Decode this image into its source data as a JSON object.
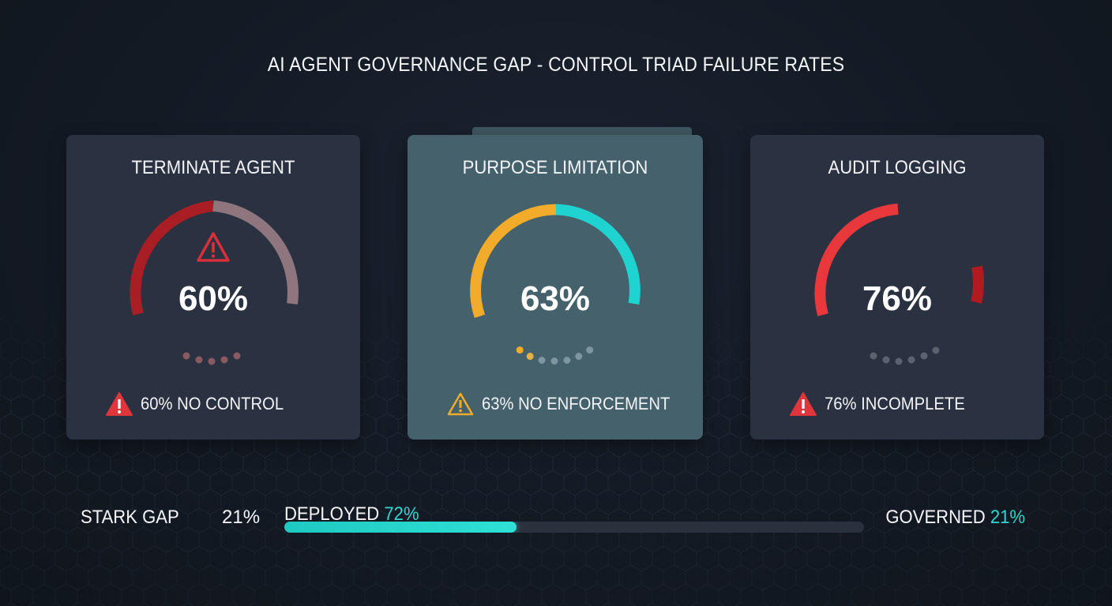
{
  "title": "AI AGENT GOVERNANCE GAP - CONTROL TRIAD FAILURE RATES",
  "cards": [
    {
      "title": "TERMINATE AGENT",
      "value": "60%",
      "percent": 60,
      "status": "60% NO CONTROL",
      "status_icon": "warning-filled-icon",
      "colors": {
        "primary": "#a81e24",
        "secondary": "#8f767e",
        "dots": "#8a5a62"
      }
    },
    {
      "title": "PURPOSE LIMITATION",
      "value": "63%",
      "percent": 63,
      "status": "63% NO ENFORCEMENT",
      "status_icon": "warning-outline-icon",
      "colors": {
        "primary": "#f3ac2a",
        "secondary": "#1fd3d0",
        "dots": "#7d96a0"
      }
    },
    {
      "title": "AUDIT LOGGING",
      "value": "76%",
      "percent": 76,
      "status": "76% INCOMPLETE",
      "status_icon": "warning-filled-icon",
      "colors": {
        "primary": "#e8383c",
        "secondary": "#b11a1f",
        "dots": "#5a6270"
      }
    }
  ],
  "gap": {
    "label": "STARK GAP",
    "value": "21%",
    "deployed_label": "DEPLOYED",
    "deployed_value": "72%",
    "deployed_fraction": 0.4,
    "governed_label": "GOVERNED",
    "governed_value": "21%"
  },
  "accent": "#2fd6d0"
}
